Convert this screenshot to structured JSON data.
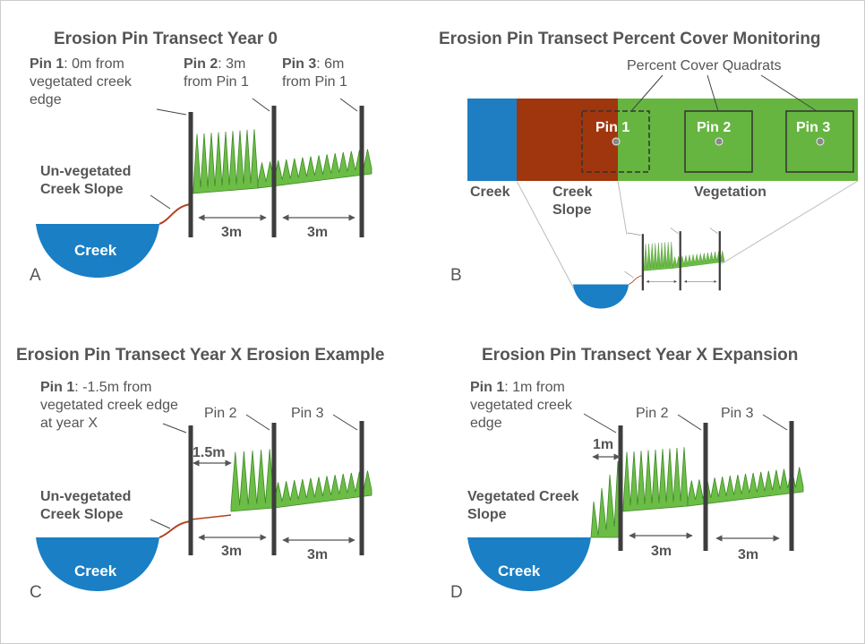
{
  "panels": [
    {
      "letter": "A",
      "title": "Erosion Pin Transect Year 0",
      "pin_labels": [
        {
          "name": "Pin 1",
          "text": ": 0m from vegetated creek edge"
        },
        {
          "name": "Pin 2",
          "text": ": 3m from Pin 1"
        },
        {
          "name": "Pin 3",
          "text": ": 6m from Pin 1"
        }
      ],
      "slope_label": "Un-vegetated Creek Slope",
      "creek": "Creek",
      "distances": [
        "3m",
        "3m"
      ]
    },
    {
      "letter": "B",
      "title": "Erosion Pin Transect Percent Cover Monitoring",
      "quadrats_label": "Percent Cover Quadrats",
      "pins": [
        "Pin 1",
        "Pin 2",
        "Pin 3"
      ],
      "zones": [
        "Creek",
        "Creek Slope",
        "Vegetation"
      ]
    },
    {
      "letter": "C",
      "title": "Erosion Pin Transect Year X Erosion Example",
      "pin_labels": [
        {
          "name": "Pin 1",
          "text": ": -1.5m from vegetated creek edge at year X"
        },
        {
          "name": "Pin 2",
          "text": ""
        },
        {
          "name": "Pin 3",
          "text": ""
        }
      ],
      "offset": "1.5m",
      "slope_label": "Un-vegetated Creek Slope",
      "creek": "Creek",
      "distances": [
        "3m",
        "3m"
      ]
    },
    {
      "letter": "D",
      "title": "Erosion Pin Transect Year X Expansion",
      "pin_labels": [
        {
          "name": "Pin 1",
          "text": ": 1m from vegetated creek edge"
        },
        {
          "name": "Pin 2",
          "text": ""
        },
        {
          "name": "Pin 3",
          "text": ""
        }
      ],
      "offset": "1m",
      "slope_label": "Vegetated Creek Slope",
      "creek": "Creek",
      "distances": [
        "3m",
        "3m"
      ]
    }
  ]
}
